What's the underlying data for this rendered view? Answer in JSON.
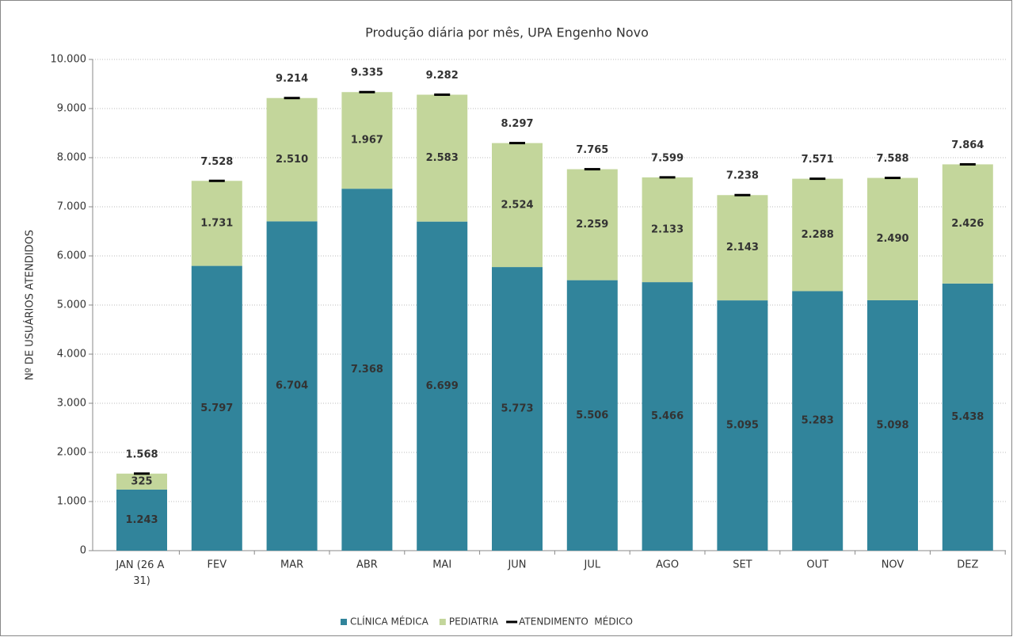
{
  "chart_data": {
    "type": "stacked-bar",
    "title": "Produção diária por mês, UPA Engenho Novo",
    "y_label": "Nº DE USUÁRIOS ATENDIDOS",
    "categories": [
      "JAN (26 A 31)",
      "FEV",
      "MAR",
      "ABR",
      "MAI",
      "JUN",
      "JUL",
      "AGO",
      "SET",
      "OUT",
      "NOV",
      "DEZ"
    ],
    "ylim": [
      0,
      10000
    ],
    "yticks": [
      0,
      {
        "value": 1000,
        "label": "1.000"
      },
      {
        "value": 2000,
        "label": "2.000"
      },
      {
        "value": 3000,
        "label": "3.000"
      },
      {
        "value": 4000,
        "label": "4.000"
      },
      {
        "value": 5000,
        "label": "5.000"
      },
      {
        "value": 6000,
        "label": "6.000"
      },
      {
        "value": 7000,
        "label": "7.000"
      },
      {
        "value": 8000,
        "label": "8.000"
      },
      {
        "value": 9000,
        "label": "9.000"
      },
      {
        "value": 10000,
        "label": "10.000"
      }
    ],
    "grid": true,
    "legend": "bottom",
    "series": [
      {
        "name": "CLÍNICA MÉDICA",
        "color": "#31849b",
        "kind": "bar",
        "values": [
          1243,
          5797,
          6704,
          7368,
          6699,
          5773,
          5506,
          5466,
          5095,
          5283,
          5098,
          5438
        ],
        "value_labels": [
          "1.243",
          "5.797",
          "6.704",
          "7.368",
          "6.699",
          "5.773",
          "5.506",
          "5.466",
          "5.095",
          "5.283",
          "5.098",
          "5.438"
        ]
      },
      {
        "name": "PEDIATRIA",
        "color": "#c3d69b",
        "kind": "bar",
        "values": [
          325,
          1731,
          2510,
          1967,
          2583,
          2524,
          2259,
          2133,
          2143,
          2288,
          2490,
          2426
        ],
        "value_labels": [
          "325",
          "1.731",
          "2.510",
          "1.967",
          "2.583",
          "2.524",
          "2.259",
          "2.133",
          "2.143",
          "2.288",
          "2.490",
          "2.426"
        ]
      },
      {
        "name": "ATENDIMENTO  MÉDICO",
        "color": "#000000",
        "kind": "marker",
        "values": [
          1568,
          7528,
          9214,
          9335,
          9282,
          8297,
          7765,
          7599,
          7238,
          7571,
          7588,
          7864
        ],
        "value_labels": [
          "1.568",
          "7.528",
          "9.214",
          "9.335",
          "9.282",
          "8.297",
          "7.765",
          "7.599",
          "7.238",
          "7.571",
          "7.588",
          "7.864"
        ]
      }
    ]
  }
}
